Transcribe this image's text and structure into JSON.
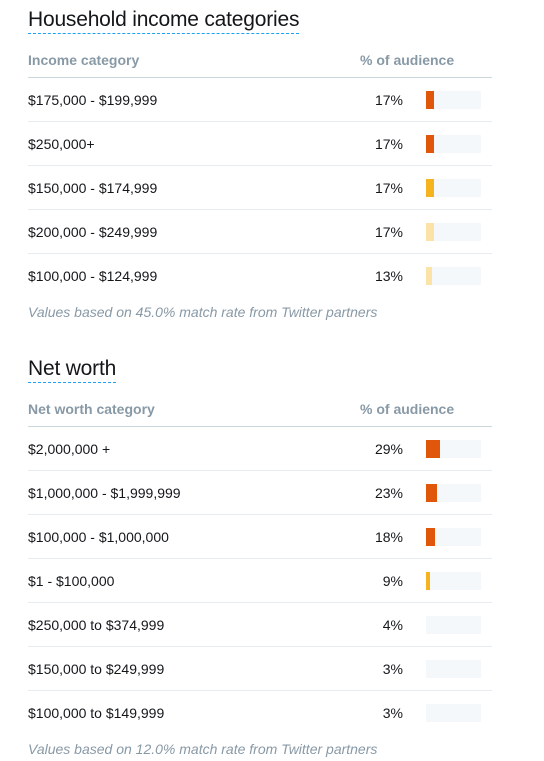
{
  "income": {
    "title": "Household income categories",
    "col_category": "Income category",
    "col_percent": "% of audience",
    "rows": [
      {
        "category": "$175,000 - $199,999",
        "percent": "17%",
        "value": 17,
        "color": "#e0560b"
      },
      {
        "category": "$250,000+",
        "percent": "17%",
        "value": 17,
        "color": "#e0560b"
      },
      {
        "category": "$150,000 - $174,999",
        "percent": "17%",
        "value": 17,
        "color": "#f5b41f"
      },
      {
        "category": "$200,000 - $249,999",
        "percent": "17%",
        "value": 17,
        "color": "#fbe3a7"
      },
      {
        "category": "$100,000 - $124,999",
        "percent": "13%",
        "value": 13,
        "color": "#fbe3a7"
      }
    ],
    "note": "Values based on 45.0% match rate from Twitter partners"
  },
  "networth": {
    "title": "Net worth",
    "col_category": "Net worth category",
    "col_percent": "% of audience",
    "rows": [
      {
        "category": "$2,000,000 +",
        "percent": "29%",
        "value": 29,
        "color": "#e0560b"
      },
      {
        "category": "$1,000,000 - $1,999,999",
        "percent": "23%",
        "value": 23,
        "color": "#e0560b"
      },
      {
        "category": "$100,000 - $1,000,000",
        "percent": "18%",
        "value": 18,
        "color": "#e0560b"
      },
      {
        "category": "$1 - $100,000",
        "percent": "9%",
        "value": 9,
        "color": "#f5b41f"
      },
      {
        "category": "$250,000 to $374,999",
        "percent": "4%",
        "value": 4,
        "color": "#f5f8fa"
      },
      {
        "category": "$150,000 to $249,999",
        "percent": "3%",
        "value": 3,
        "color": "#f5f8fa"
      },
      {
        "category": "$100,000 to $149,999",
        "percent": "3%",
        "value": 3,
        "color": "#f5f8fa"
      }
    ],
    "note": "Values based on 12.0% match rate from Twitter partners"
  }
}
